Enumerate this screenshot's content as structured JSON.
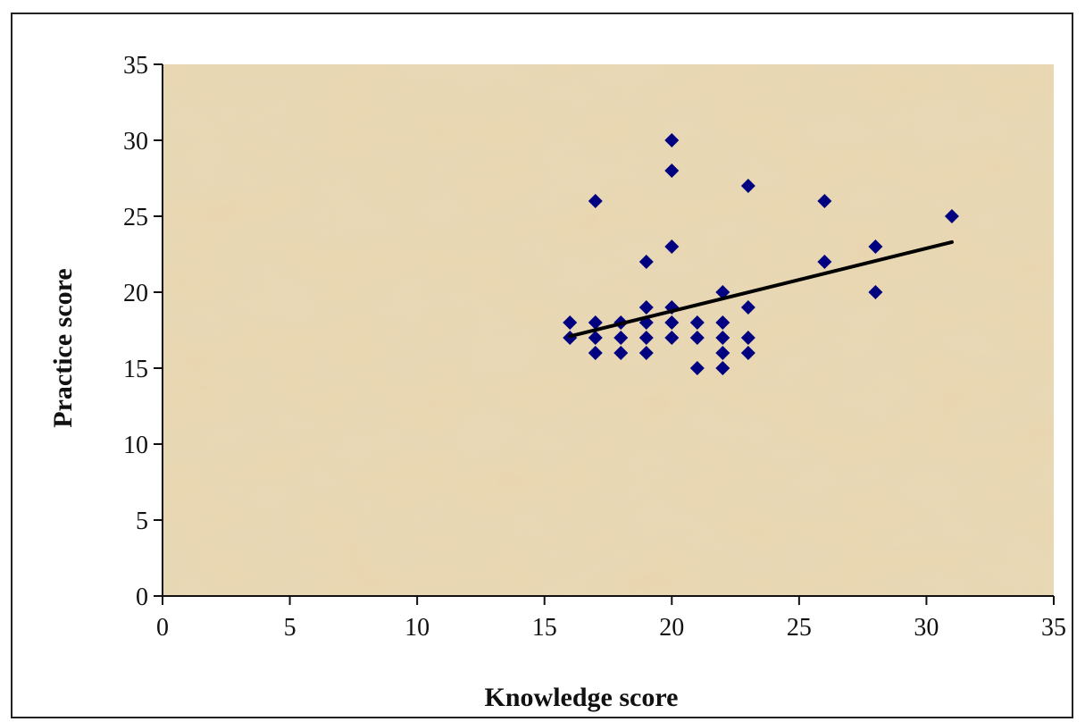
{
  "chart_data": {
    "type": "scatter",
    "title": "",
    "xlabel": "Knowledge score",
    "ylabel": "Practice score",
    "xlim": [
      0,
      35
    ],
    "ylim": [
      0,
      35
    ],
    "xticks": [
      "0",
      "5",
      "10",
      "15",
      "20",
      "25",
      "30",
      "35"
    ],
    "yticks": [
      "0",
      "5",
      "10",
      "15",
      "20",
      "25",
      "30",
      "35"
    ],
    "grid": false,
    "legend": "none",
    "points": [
      [
        16,
        17
      ],
      [
        16,
        18
      ],
      [
        17,
        16
      ],
      [
        17,
        17
      ],
      [
        17,
        18
      ],
      [
        17,
        26
      ],
      [
        18,
        16
      ],
      [
        18,
        17
      ],
      [
        18,
        18
      ],
      [
        19,
        16
      ],
      [
        19,
        17
      ],
      [
        19,
        18
      ],
      [
        19,
        19
      ],
      [
        19,
        22
      ],
      [
        20,
        17
      ],
      [
        20,
        18
      ],
      [
        20,
        19
      ],
      [
        20,
        23
      ],
      [
        20,
        28
      ],
      [
        20,
        30
      ],
      [
        21,
        15
      ],
      [
        21,
        17
      ],
      [
        21,
        18
      ],
      [
        22,
        15
      ],
      [
        22,
        16
      ],
      [
        22,
        17
      ],
      [
        22,
        18
      ],
      [
        22,
        20
      ],
      [
        23,
        16
      ],
      [
        23,
        17
      ],
      [
        23,
        19
      ],
      [
        23,
        27
      ],
      [
        26,
        22
      ],
      [
        26,
        26
      ],
      [
        28,
        20
      ],
      [
        28,
        23
      ],
      [
        31,
        25
      ]
    ],
    "trendline": {
      "type": "linear",
      "x": [
        16,
        31
      ],
      "y": [
        17.1,
        23.3
      ]
    },
    "colors": {
      "marker": "#000080",
      "trendline": "#000000",
      "plot_background": "#e9d6b0"
    }
  }
}
